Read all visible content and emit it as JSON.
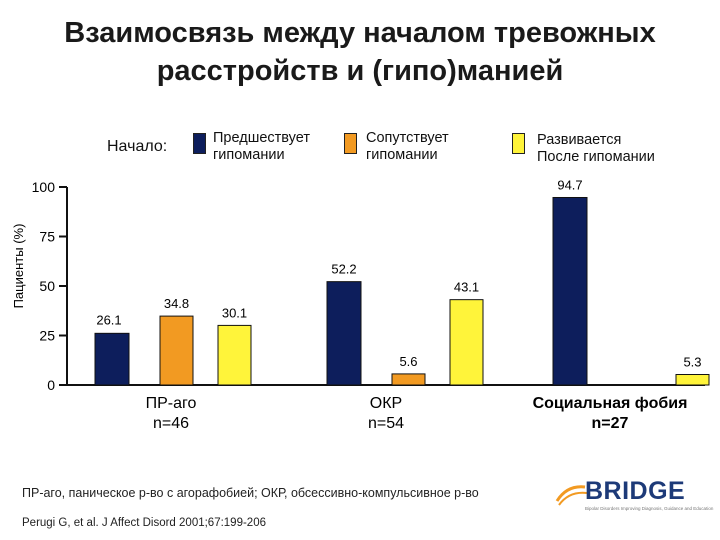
{
  "slide": {
    "title_line1": "Взаимосвязь между началом тревожных",
    "title_line2": "расстройств и  (гипо)манией",
    "footnote": "ПР-аго, паническое р-во с агорафобией; ОКР, обсессивно-компульсивное р-во",
    "citation": "Perugi G, et al. J Affect Disord 2001;67:199-206",
    "logo_text": "BRIDGE",
    "logo_tagline": "Bipolar Disorders Improving Diagnosis, Guidance and Education"
  },
  "legend": {
    "prefix": "Начало:",
    "items": [
      {
        "line1": "Предшествует",
        "line2": "гипомании",
        "color": "#0d1e5c"
      },
      {
        "line1": "Сопутствует",
        "line2": "гипомании",
        "color": "#f29a22"
      },
      {
        "line1": "Развивается",
        "line2": "После гипомании",
        "color": "#fff43a"
      }
    ]
  },
  "chart_data": {
    "type": "bar",
    "ylabel": "Пациенты (%)",
    "ylim": [
      0,
      100
    ],
    "yticks": [
      0,
      25,
      50,
      75,
      100
    ],
    "categories": [
      {
        "line1": "ПР-аго",
        "line2": "n=46"
      },
      {
        "line1": "ОКР",
        "line2": "n=54"
      },
      {
        "line1": "Социальная фобия",
        "line2": "n=27"
      }
    ],
    "series": [
      {
        "name": "Предшествует гипомании",
        "color": "#0d1e5c",
        "values": [
          26.1,
          52.2,
          94.7
        ]
      },
      {
        "name": "Сопутствует гипомании",
        "color": "#f29a22",
        "values": [
          34.8,
          5.6,
          0
        ]
      },
      {
        "name": "Развивается После гипомании",
        "color": "#fff43a",
        "values": [
          30.1,
          43.1,
          5.3
        ]
      }
    ],
    "data_labels": [
      [
        "26.1",
        "34.8",
        "30.1"
      ],
      [
        "52.2",
        "5.6",
        "43.1"
      ],
      [
        "94.7",
        "",
        "5.3"
      ]
    ],
    "grid": false,
    "legend_position": "top"
  }
}
